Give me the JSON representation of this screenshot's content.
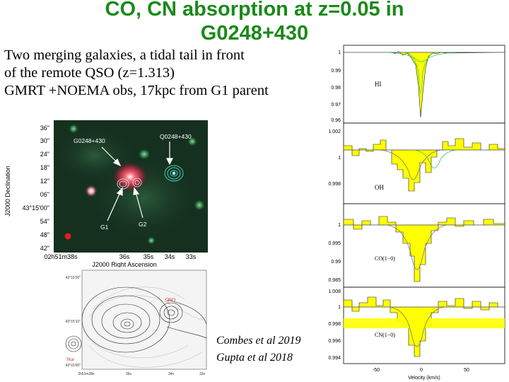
{
  "slide": {
    "title_line1": "CO, CN absorption at z=0.05 in",
    "title_line2": "G0248+430",
    "subtitle_line1": "Two merging galaxies, a tidal tail in front",
    "subtitle_line2": "of the remote QSO (z=1.313)",
    "subtitle_line3": "GMRT +NOEMA obs, 17kpc from G1 parent",
    "citation_line1": "Combes et al 2019",
    "citation_line2": "Gupta et al 2018"
  },
  "optical_image": {
    "dec_ticks": [
      "36\"",
      "30\"",
      "24\"",
      "18\"",
      "12\"",
      "06\"",
      "43°15'00\"",
      "54\"",
      "48\"",
      "42\""
    ],
    "ra_ticks": [
      "02h51m38s",
      "36s",
      "35s",
      "34s",
      "33s"
    ],
    "ylabel": "J2000 Declination",
    "xlabel": "J2000 Right Ascension",
    "labels": {
      "galaxy": "G0248+430",
      "qso": "Q0248+430",
      "g1": "G1",
      "g2": "G2"
    },
    "colors": {
      "background": "#15301f",
      "galaxy": "#ff6070",
      "contours": "#40d0c0"
    }
  },
  "contour_image": {
    "dec_ticks": [
      "43°15'20\"",
      "43°15'10\"",
      "43°15'00\""
    ],
    "ra_ticks": [
      "2h51m38s",
      "36s",
      "34s",
      "33s"
    ],
    "labels": {
      "qso": "QSO",
      "star": "Star"
    }
  },
  "spectra": {
    "xlabel": "Velocity (km/s)",
    "x_ticks": [
      "-50",
      "0",
      "50"
    ],
    "fill_color": "#ffff00",
    "panels": [
      {
        "label": "HI",
        "y_ticks": [
          "1",
          "0.99",
          "0.98",
          "0.97",
          "0.96"
        ]
      },
      {
        "label": "OH",
        "y_ticks": [
          "1.002",
          "1",
          "0.998"
        ]
      },
      {
        "label": "CO(1−0)",
        "y_ticks": [
          "1",
          "0.995",
          "0.99",
          "0.985"
        ]
      },
      {
        "label": "CN(1−0)",
        "y_ticks": [
          "1.008",
          "1",
          "0.998",
          "0.996",
          "0.994"
        ]
      }
    ]
  }
}
